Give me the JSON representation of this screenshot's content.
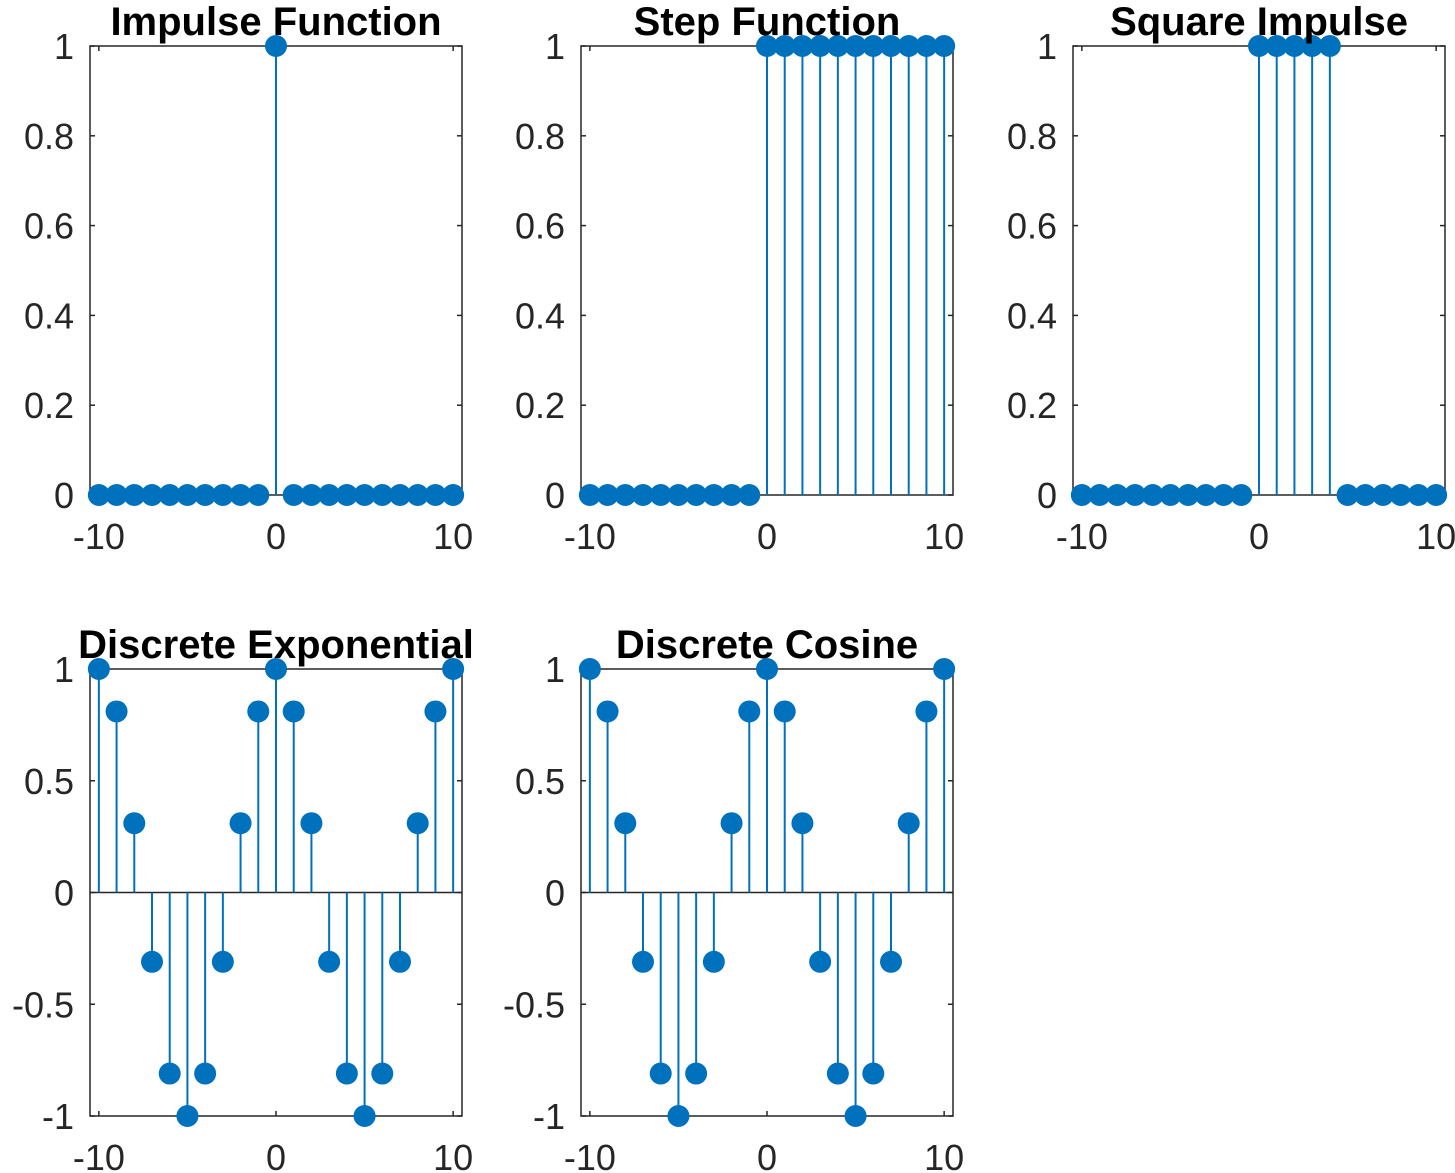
{
  "colors": {
    "stem": "#0072bd",
    "axis": "#262626",
    "title": "#000000"
  },
  "chart_data": [
    {
      "type": "stem",
      "title": "Impulse Function",
      "xlim": [
        -10.5,
        10.5
      ],
      "ylim": [
        0,
        1
      ],
      "xticks": [
        -10,
        0,
        10
      ],
      "xtick_labels": [
        "-10",
        "0",
        "10"
      ],
      "yticks": [
        0,
        0.2,
        0.4,
        0.6,
        0.8,
        1
      ],
      "ytick_labels": [
        "0",
        "0.2",
        "0.4",
        "0.6",
        "0.8",
        "1"
      ],
      "grid": false,
      "x": [
        -10,
        -9,
        -8,
        -7,
        -6,
        -5,
        -4,
        -3,
        -2,
        -1,
        0,
        1,
        2,
        3,
        4,
        5,
        6,
        7,
        8,
        9,
        10
      ],
      "y": [
        0,
        0,
        0,
        0,
        0,
        0,
        0,
        0,
        0,
        0,
        1,
        0,
        0,
        0,
        0,
        0,
        0,
        0,
        0,
        0,
        0
      ]
    },
    {
      "type": "stem",
      "title": "Step Function",
      "xlim": [
        -10.5,
        10.5
      ],
      "ylim": [
        0,
        1
      ],
      "xticks": [
        -10,
        0,
        10
      ],
      "xtick_labels": [
        "-10",
        "0",
        "10"
      ],
      "yticks": [
        0,
        0.2,
        0.4,
        0.6,
        0.8,
        1
      ],
      "ytick_labels": [
        "0",
        "0.2",
        "0.4",
        "0.6",
        "0.8",
        "1"
      ],
      "grid": false,
      "x": [
        -10,
        -9,
        -8,
        -7,
        -6,
        -5,
        -4,
        -3,
        -2,
        -1,
        0,
        1,
        2,
        3,
        4,
        5,
        6,
        7,
        8,
        9,
        10
      ],
      "y": [
        0,
        0,
        0,
        0,
        0,
        0,
        0,
        0,
        0,
        0,
        1,
        1,
        1,
        1,
        1,
        1,
        1,
        1,
        1,
        1,
        1
      ]
    },
    {
      "type": "stem",
      "title": "Square Impulse",
      "xlim": [
        -10.5,
        10.5
      ],
      "ylim": [
        0,
        1
      ],
      "xticks": [
        -10,
        0,
        10
      ],
      "xtick_labels": [
        "-10",
        "0",
        "10"
      ],
      "yticks": [
        0,
        0.2,
        0.4,
        0.6,
        0.8,
        1
      ],
      "ytick_labels": [
        "0",
        "0.2",
        "0.4",
        "0.6",
        "0.8",
        "1"
      ],
      "grid": false,
      "x": [
        -10,
        -9,
        -8,
        -7,
        -6,
        -5,
        -4,
        -3,
        -2,
        -1,
        0,
        1,
        2,
        3,
        4,
        5,
        6,
        7,
        8,
        9,
        10
      ],
      "y": [
        0,
        0,
        0,
        0,
        0,
        0,
        0,
        0,
        0,
        0,
        1,
        1,
        1,
        1,
        1,
        0,
        0,
        0,
        0,
        0,
        0
      ]
    },
    {
      "type": "stem",
      "title": "Discrete Exponential",
      "xlim": [
        -10.5,
        10.5
      ],
      "ylim": [
        -1,
        1
      ],
      "xticks": [
        -10,
        0,
        10
      ],
      "xtick_labels": [
        "-10",
        "0",
        "10"
      ],
      "yticks": [
        -1,
        -0.5,
        0,
        0.5,
        1
      ],
      "ytick_labels": [
        "-1",
        "-0.5",
        "0",
        "0.5",
        "1"
      ],
      "grid": false,
      "x": [
        -10,
        -9,
        -8,
        -7,
        -6,
        -5,
        -4,
        -3,
        -2,
        -1,
        0,
        1,
        2,
        3,
        4,
        5,
        6,
        7,
        8,
        9,
        10
      ],
      "y": [
        1,
        0.81,
        0.31,
        -0.31,
        -0.81,
        -1,
        -0.81,
        -0.31,
        0.31,
        0.81,
        1,
        0.81,
        0.31,
        -0.31,
        -0.81,
        -1,
        -0.81,
        -0.31,
        0.31,
        0.81,
        1
      ]
    },
    {
      "type": "stem",
      "title": "Discrete Cosine",
      "xlim": [
        -10.5,
        10.5
      ],
      "ylim": [
        -1,
        1
      ],
      "xticks": [
        -10,
        0,
        10
      ],
      "xtick_labels": [
        "-10",
        "0",
        "10"
      ],
      "yticks": [
        -1,
        -0.5,
        0,
        0.5,
        1
      ],
      "ytick_labels": [
        "-1",
        "-0.5",
        "0",
        "0.5",
        "1"
      ],
      "grid": false,
      "x": [
        -10,
        -9,
        -8,
        -7,
        -6,
        -5,
        -4,
        -3,
        -2,
        -1,
        0,
        1,
        2,
        3,
        4,
        5,
        6,
        7,
        8,
        9,
        10
      ],
      "y": [
        1,
        0.81,
        0.31,
        -0.31,
        -0.81,
        -1,
        -0.81,
        -0.31,
        0.31,
        0.81,
        1,
        0.81,
        0.31,
        -0.31,
        -0.81,
        -1,
        -0.81,
        -0.31,
        0.31,
        0.81,
        1
      ]
    }
  ]
}
